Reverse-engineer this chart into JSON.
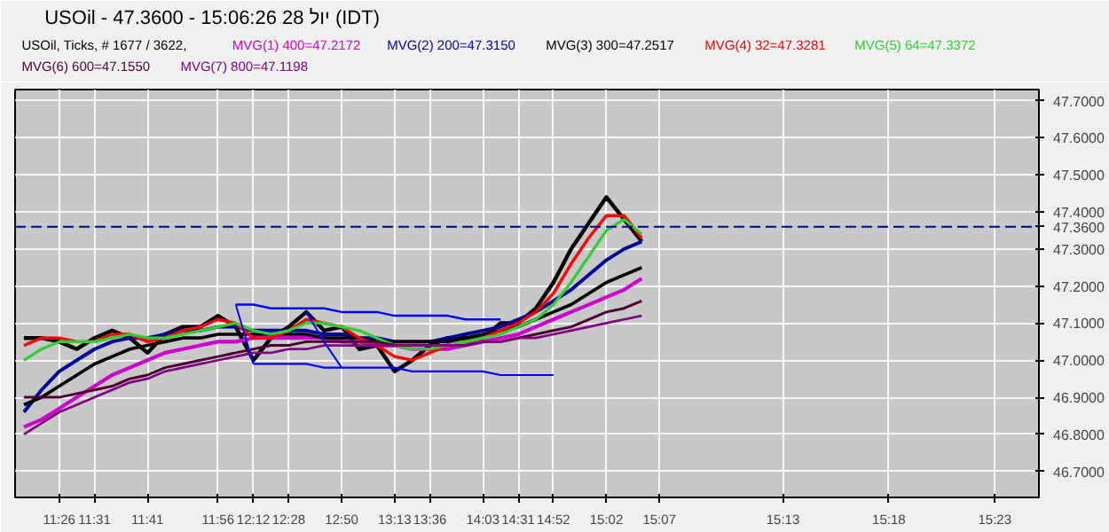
{
  "chart_data": {
    "type": "line",
    "title": "USOil - 47.3600 - 15:06:26 28 יול (IDT)",
    "subtitle": "USOil, Ticks, # 1677 / 3622,",
    "categories": [
      null,
      null,
      "11:26",
      null,
      "11:31",
      null,
      null,
      "11:41",
      null,
      null,
      null,
      "11:56",
      null,
      "12:12",
      null,
      "12:28",
      null,
      null,
      "12:50",
      null,
      null,
      "13:13",
      null,
      "13:36",
      null,
      null,
      "14:03",
      null,
      "14:31",
      null,
      "14:52",
      null,
      null,
      "15:02",
      null,
      null,
      "15:07",
      null,
      null,
      null,
      null,
      null,
      null,
      "15:13",
      null,
      null,
      null,
      null,
      null,
      "15:18",
      null,
      null,
      null,
      null,
      null,
      "15:23",
      null,
      null
    ],
    "ylim": [
      46.63,
      47.73
    ],
    "yticks": [
      {
        "value": 46.7,
        "label": "46.7000"
      },
      {
        "value": 46.8,
        "label": "46.8000"
      },
      {
        "value": 46.9,
        "label": "46.9000"
      },
      {
        "value": 47.0,
        "label": "47.0000"
      },
      {
        "value": 47.1,
        "label": "47.1000"
      },
      {
        "value": 47.2,
        "label": "47.2000"
      },
      {
        "value": 47.3,
        "label": "47.3000"
      },
      {
        "value": 47.4,
        "label": "47.4000"
      },
      {
        "value": 47.5,
        "label": "47.5000"
      },
      {
        "value": 47.6,
        "label": "47.6000"
      },
      {
        "value": 47.7,
        "label": "47.7000"
      }
    ],
    "grid": true,
    "legend": "top",
    "marker": "none",
    "line_style": "solid",
    "ref_lines": [
      {
        "axis": "y",
        "value": 47.36,
        "label": "47.3600",
        "color": "#000080",
        "line_style": "dashed"
      }
    ],
    "series": [
      {
        "color": "#000000",
        "values": [
          47.06,
          47.06,
          47.05,
          47.03,
          47.06,
          47.08,
          47.06,
          47.02,
          47.07,
          47.09,
          47.09,
          47.12,
          47.09,
          47.0,
          47.06,
          47.09,
          47.13,
          47.08,
          47.09,
          47.03,
          47.04,
          46.97,
          47.0,
          47.04,
          47.06,
          47.06,
          47.06,
          47.1,
          47.1,
          47.14,
          47.21,
          47.3,
          47.37,
          47.44,
          47.38,
          47.32,
          null,
          null,
          null,
          null,
          null,
          null,
          null,
          null,
          null,
          null,
          null,
          null,
          null,
          null,
          null,
          null,
          null,
          null,
          null,
          null,
          null,
          null
        ]
      },
      {
        "name": "MVG(1) 400=47.2172",
        "color": "#cc00cc",
        "values": [
          46.82,
          46.84,
          46.87,
          46.9,
          46.93,
          46.96,
          46.98,
          47.0,
          47.02,
          47.03,
          47.04,
          47.05,
          47.05,
          47.06,
          47.06,
          47.06,
          47.06,
          47.06,
          47.05,
          47.05,
          47.04,
          47.04,
          47.03,
          47.03,
          47.03,
          47.04,
          47.05,
          47.06,
          47.07,
          47.09,
          47.11,
          47.13,
          47.15,
          47.17,
          47.19,
          47.22,
          null,
          null,
          null,
          null,
          null,
          null,
          null,
          null,
          null,
          null,
          null,
          null,
          null,
          null,
          null,
          null,
          null,
          null,
          null,
          null,
          null,
          null
        ]
      },
      {
        "name": "MVG(2) 200=47.3150",
        "color": "#000099",
        "values": [
          46.86,
          46.92,
          46.97,
          47.0,
          47.03,
          47.05,
          47.06,
          47.06,
          47.07,
          47.08,
          47.08,
          47.09,
          47.09,
          47.08,
          47.08,
          47.08,
          47.08,
          47.07,
          47.07,
          47.06,
          47.06,
          47.05,
          47.05,
          47.05,
          47.06,
          47.07,
          47.08,
          47.09,
          47.11,
          47.13,
          47.16,
          47.19,
          47.23,
          47.27,
          47.3,
          47.32,
          null,
          null,
          null,
          null,
          null,
          null,
          null,
          null,
          null,
          null,
          null,
          null,
          null,
          null,
          null,
          null,
          null,
          null,
          null,
          null,
          null,
          null
        ]
      },
      {
        "name": "MVG(3) 300=47.2517",
        "color": "#000000",
        "values": [
          46.88,
          46.9,
          46.93,
          46.96,
          46.99,
          47.01,
          47.03,
          47.04,
          47.05,
          47.06,
          47.06,
          47.07,
          47.07,
          47.07,
          47.07,
          47.07,
          47.07,
          47.06,
          47.06,
          47.06,
          47.05,
          47.05,
          47.05,
          47.05,
          47.05,
          47.06,
          47.07,
          47.08,
          47.09,
          47.11,
          47.13,
          47.15,
          47.18,
          47.21,
          47.23,
          47.25,
          null,
          null,
          null,
          null,
          null,
          null,
          null,
          null,
          null,
          null,
          null,
          null,
          null,
          null,
          null,
          null,
          null,
          null,
          null,
          null,
          null,
          null
        ]
      },
      {
        "name": "MVG(4) 32=47.3281",
        "color": "#ff0000",
        "values": [
          47.04,
          47.06,
          47.06,
          47.05,
          47.05,
          47.07,
          47.07,
          47.05,
          47.06,
          47.08,
          47.09,
          47.11,
          47.1,
          47.06,
          47.06,
          47.08,
          47.11,
          47.1,
          47.09,
          47.06,
          47.04,
          47.01,
          47.0,
          47.02,
          47.04,
          47.05,
          47.06,
          47.08,
          47.1,
          47.13,
          47.18,
          47.26,
          47.33,
          47.39,
          47.39,
          47.33,
          null,
          null,
          null,
          null,
          null,
          null,
          null,
          null,
          null,
          null,
          null,
          null,
          null,
          null,
          null,
          null,
          null,
          null,
          null,
          null,
          null,
          null
        ]
      },
      {
        "name": "MVG(5) 64=47.3372",
        "color": "#33cc33",
        "values": [
          47.0,
          47.03,
          47.05,
          47.05,
          47.05,
          47.06,
          47.07,
          47.06,
          47.06,
          47.07,
          47.08,
          47.09,
          47.1,
          47.08,
          47.07,
          47.08,
          47.1,
          47.1,
          47.09,
          47.08,
          47.06,
          47.04,
          47.03,
          47.03,
          47.04,
          47.05,
          47.06,
          47.07,
          47.09,
          47.11,
          47.15,
          47.21,
          47.28,
          47.35,
          47.38,
          47.34,
          null,
          null,
          null,
          null,
          null,
          null,
          null,
          null,
          null,
          null,
          null,
          null,
          null,
          null,
          null,
          null,
          null,
          null,
          null,
          null,
          null,
          null
        ]
      },
      {
        "name": "MVG(6) 600=47.1550",
        "color": "#4b0030",
        "values": [
          46.9,
          46.9,
          46.9,
          46.91,
          46.92,
          46.93,
          46.95,
          46.96,
          46.98,
          46.99,
          47.0,
          47.01,
          47.02,
          47.03,
          47.04,
          47.04,
          47.05,
          47.05,
          47.05,
          47.05,
          47.05,
          47.04,
          47.04,
          47.04,
          47.04,
          47.04,
          47.05,
          47.05,
          47.06,
          47.07,
          47.08,
          47.09,
          47.11,
          47.13,
          47.14,
          47.16,
          null,
          null,
          null,
          null,
          null,
          null,
          null,
          null,
          null,
          null,
          null,
          null,
          null,
          null,
          null,
          null,
          null,
          null,
          null,
          null,
          null,
          null
        ]
      },
      {
        "name": "MVG(7) 800=47.1198",
        "color": "#800080",
        "values": [
          46.8,
          46.83,
          46.86,
          46.88,
          46.9,
          46.92,
          46.94,
          46.95,
          46.97,
          46.98,
          46.99,
          47.0,
          47.01,
          47.02,
          47.02,
          47.03,
          47.03,
          47.04,
          47.04,
          47.04,
          47.04,
          47.04,
          47.04,
          47.04,
          47.04,
          47.04,
          47.05,
          47.05,
          47.06,
          47.06,
          47.07,
          47.08,
          47.09,
          47.1,
          47.11,
          47.12,
          null,
          null,
          null,
          null,
          null,
          null,
          null,
          null,
          null,
          null,
          null,
          null,
          null,
          null,
          null,
          null,
          null,
          null,
          null,
          null,
          null,
          null
        ]
      },
      {
        "color": "#0000ff",
        "values": [
          null,
          null,
          null,
          null,
          null,
          null,
          null,
          null,
          null,
          null,
          null,
          null,
          47.15,
          47.15,
          47.14,
          47.14,
          47.14,
          47.14,
          47.13,
          47.13,
          47.13,
          47.12,
          47.12,
          47.12,
          47.12,
          47.11,
          47.11,
          47.11,
          null,
          null,
          null,
          null,
          null,
          null,
          null,
          null,
          null,
          null,
          null,
          null,
          null,
          null,
          null,
          null,
          null,
          null,
          null,
          null,
          null,
          null,
          null,
          null,
          null,
          null,
          null,
          null,
          null,
          null
        ]
      },
      {
        "color": "#0000ff",
        "values": [
          null,
          null,
          null,
          null,
          null,
          null,
          null,
          null,
          null,
          null,
          null,
          null,
          null,
          46.99,
          46.99,
          46.99,
          46.99,
          46.98,
          46.98,
          46.98,
          46.98,
          46.98,
          46.97,
          46.97,
          46.97,
          46.97,
          46.97,
          46.96,
          46.96,
          46.96,
          46.96,
          null,
          null,
          null,
          null,
          null,
          null,
          null,
          null,
          null,
          null,
          null,
          null,
          null,
          null,
          null,
          null,
          null,
          null,
          null,
          null,
          null,
          null,
          null,
          null,
          null,
          null,
          null
        ]
      },
      {
        "color": "#0000ff",
        "values": [
          null,
          null,
          null,
          null,
          null,
          null,
          null,
          null,
          null,
          null,
          null,
          null,
          47.15,
          46.99,
          null,
          null,
          null,
          null,
          null,
          null,
          null,
          null,
          null,
          null,
          null,
          null,
          null,
          null,
          null,
          null,
          null,
          null,
          null,
          null,
          null,
          null,
          null,
          null,
          null,
          null,
          null,
          null,
          null,
          null,
          null,
          null,
          null,
          null,
          null,
          null,
          null,
          null,
          null,
          null,
          null,
          null,
          null,
          null
        ]
      },
      {
        "color": "#0000ff",
        "values": [
          null,
          null,
          null,
          null,
          null,
          null,
          null,
          null,
          null,
          null,
          null,
          null,
          null,
          null,
          null,
          null,
          47.13,
          47.05,
          46.98,
          null,
          null,
          null,
          null,
          null,
          null,
          null,
          null,
          null,
          null,
          null,
          null,
          null,
          null,
          null,
          null,
          null,
          null,
          null,
          null,
          null,
          null,
          null,
          null,
          null,
          null,
          null,
          null,
          null,
          null,
          null,
          null,
          null,
          null,
          null,
          null,
          null,
          null,
          null
        ]
      }
    ]
  }
}
